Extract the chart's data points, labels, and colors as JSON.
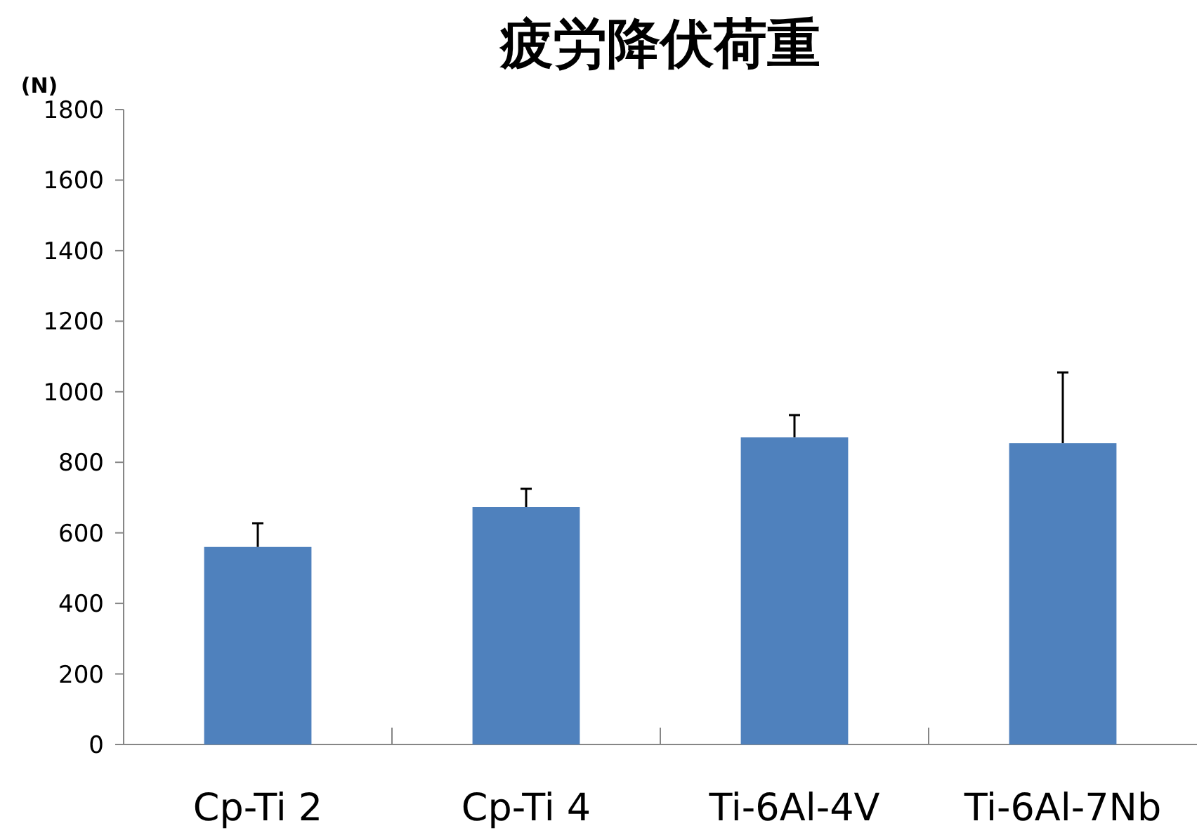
{
  "chart_data": {
    "type": "bar",
    "title": "疲労降伏荷重",
    "ylabel": "(N)",
    "categories": [
      "Cp-Ti 2",
      "Cp-Ti 4",
      "Ti-6Al-4V",
      "Ti-6Al-7Nb"
    ],
    "values": [
      560,
      673,
      871,
      854
    ],
    "errors": [
      67,
      52,
      63,
      201
    ],
    "color": "#4f81bd",
    "ylim": [
      0,
      1800
    ],
    "yticks": [
      0,
      200,
      400,
      600,
      800,
      1000,
      1200,
      1400,
      1600,
      1800
    ]
  }
}
